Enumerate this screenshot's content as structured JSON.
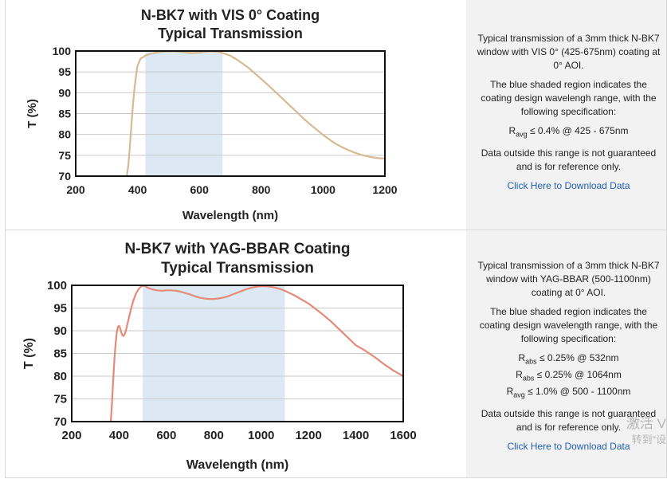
{
  "chart_data": [
    {
      "type": "line",
      "title": [
        "N-BK7 with VIS 0° Coating",
        "Typical Transmission"
      ],
      "xlabel": "Wavelength (nm)",
      "ylabel": "T (%)",
      "xlim": [
        200,
        1200
      ],
      "ylim": [
        70,
        100
      ],
      "xticks": [
        "200",
        "400",
        "600",
        "800",
        "1000",
        "1200"
      ],
      "yticks": [
        "70",
        "75",
        "80",
        "85",
        "90",
        "95",
        "100"
      ],
      "grid": true,
      "legend": "none",
      "design_band": [
        425,
        675
      ],
      "band_color": "#dce9f5",
      "line_color": "#d7b993",
      "series": [
        {
          "x": [
            365,
            370,
            375,
            380,
            385,
            390,
            395,
            400,
            410,
            420,
            425,
            440,
            460,
            480,
            500,
            520,
            540,
            560,
            580,
            600,
            620,
            640,
            660,
            675,
            700,
            720,
            740,
            760,
            780,
            800,
            820,
            840,
            860,
            880,
            900,
            920,
            940,
            960,
            980,
            1000,
            1020,
            1040,
            1060,
            1080,
            1100,
            1120,
            1140,
            1160,
            1180,
            1200
          ],
          "y": [
            70,
            72.5,
            77,
            82,
            87,
            91,
            94,
            96.5,
            98.2,
            98.6,
            98.9,
            99.3,
            99.6,
            99.8,
            99.9,
            99.9,
            99.8,
            99.6,
            99.5,
            99.6,
            99.8,
            99.9,
            99.8,
            99.5,
            98.9,
            98.0,
            97.0,
            95.9,
            94.6,
            93.3,
            92.0,
            90.6,
            89.2,
            87.8,
            86.4,
            85.0,
            83.6,
            82.3,
            81.1,
            79.9,
            78.8,
            77.8,
            77.0,
            76.3,
            75.7,
            75.2,
            74.8,
            74.5,
            74.3,
            74.2
          ]
        }
      ]
    },
    {
      "type": "line",
      "title": [
        "N-BK7 with YAG-BBAR Coating",
        "Typical Transmission"
      ],
      "xlabel": "Wavelength (nm)",
      "ylabel": "T (%)",
      "xlim": [
        200,
        1600
      ],
      "ylim": [
        70,
        100
      ],
      "xticks": [
        "200",
        "400",
        "600",
        "800",
        "1000",
        "1200",
        "1400",
        "1600"
      ],
      "yticks": [
        "70",
        "75",
        "80",
        "85",
        "90",
        "95",
        "100"
      ],
      "grid": true,
      "legend": "none",
      "design_band": [
        500,
        1100
      ],
      "band_color": "#dce9f5",
      "line_color": "#e58a78",
      "series": [
        {
          "x": [
            365,
            370,
            375,
            380,
            385,
            390,
            395,
            400,
            405,
            410,
            415,
            420,
            425,
            430,
            440,
            450,
            460,
            470,
            480,
            490,
            500,
            510,
            520,
            540,
            560,
            580,
            600,
            620,
            640,
            660,
            680,
            700,
            720,
            740,
            760,
            780,
            800,
            820,
            840,
            860,
            880,
            900,
            920,
            940,
            960,
            980,
            1000,
            1020,
            1040,
            1060,
            1080,
            1100,
            1120,
            1140,
            1160,
            1180,
            1200,
            1220,
            1240,
            1260,
            1280,
            1300,
            1320,
            1340,
            1360,
            1380,
            1400,
            1420,
            1440,
            1460,
            1480,
            1500,
            1520,
            1540,
            1560,
            1580,
            1600
          ],
          "y": [
            70,
            74,
            79,
            83.5,
            87,
            89.5,
            90.8,
            91.1,
            90.5,
            89.5,
            88.9,
            88.9,
            89.4,
            90.3,
            92.5,
            94.7,
            96.6,
            98.0,
            99.0,
            99.6,
            99.9,
            99.8,
            99.5,
            99.1,
            98.9,
            98.8,
            98.9,
            98.9,
            98.8,
            98.6,
            98.3,
            98.0,
            97.6,
            97.3,
            97.1,
            97.0,
            97.0,
            97.1,
            97.3,
            97.6,
            98.0,
            98.4,
            98.8,
            99.2,
            99.5,
            99.7,
            99.8,
            99.8,
            99.7,
            99.5,
            99.2,
            98.8,
            98.3,
            97.8,
            97.2,
            96.6,
            96.0,
            95.2,
            94.4,
            93.6,
            92.7,
            91.8,
            90.8,
            89.8,
            88.8,
            87.8,
            86.8,
            86.2,
            85.6,
            84.9,
            84.2,
            83.4,
            82.6,
            81.9,
            81.2,
            80.6,
            80.0
          ]
        }
      ]
    }
  ],
  "panels": [
    {
      "desc1": "Typical transmission of a 3mm thick N-BK7 window with VIS 0° (425-675nm) coating at 0° AOI.",
      "desc2": "The blue shaded region indicates the coating design wavelengh range, with the following specification:",
      "specs": [
        {
          "sym": "R",
          "sub": "avg",
          "rest": " ≤ 0.4% @ 425 - 675nm"
        }
      ],
      "note": "Data outside this range is not guaranteed and is for reference only.",
      "link": "Click Here to Download Data"
    },
    {
      "desc1": "Typical transmission of a 3mm thick N-BK7 window with YAG-BBAR (500-1100nm) coating at 0° AOI.",
      "desc2": "The blue shaded region indicates the coating design wavelength range, with the following specification:",
      "specs": [
        {
          "sym": "R",
          "sub": "abs",
          "rest": " ≤ 0.25% @ 532nm"
        },
        {
          "sym": "R",
          "sub": "abs",
          "rest": " ≤ 0.25% @ 1064nm"
        },
        {
          "sym": "R",
          "sub": "avg",
          "rest": " ≤ 1.0% @ 500 - 1100nm"
        }
      ],
      "note": "Data outside this range is not guaranteed and is for reference only.",
      "link": "Click Here to Download Data"
    }
  ],
  "watermark": {
    "line1": "激活 V",
    "line2": "转到“设"
  }
}
